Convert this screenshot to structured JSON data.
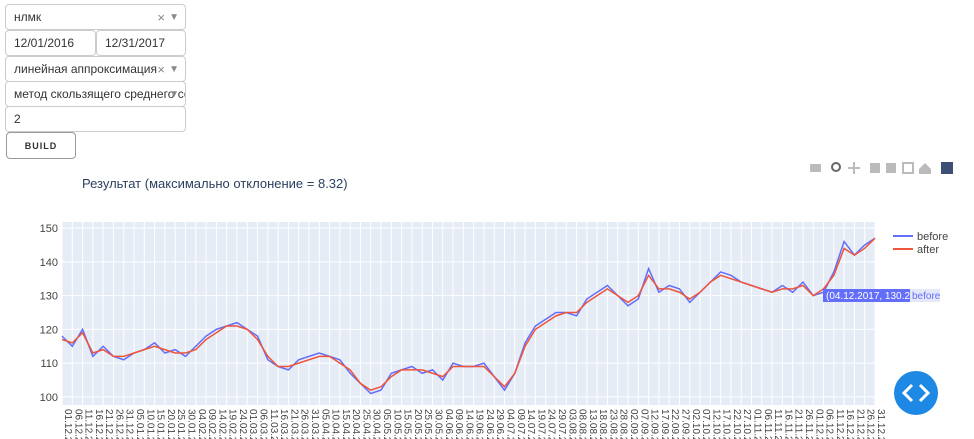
{
  "controls": {
    "stock": "нлмк",
    "date_start": "12/01/2016",
    "date_end": "12/31/2017",
    "approximation": "линейная аппроксимация",
    "method": "метод скользящего среднего со...",
    "window": "2",
    "build": "BUILD"
  },
  "chart_data": {
    "type": "line",
    "title": "Результат (максимально отклонение = 8.32)",
    "categories": [
      "01.12.2016",
      "06.12.2016",
      "11.12.2016",
      "16.12.2016",
      "21.12.2016",
      "26.12.2016",
      "31.12.2016",
      "05.01.2017",
      "10.01.2017",
      "15.01.2017",
      "20.01.2017",
      "25.01.2017",
      "30.01.2017",
      "04.02.2017",
      "09.02.2017",
      "14.02.2017",
      "19.02.2017",
      "24.02.2017",
      "01.03.2017",
      "06.03.2017",
      "11.03.2017",
      "16.03.2017",
      "21.03.2017",
      "26.03.2017",
      "31.03.2017",
      "05.04.2017",
      "10.04.2017",
      "15.04.2017",
      "20.04.2017",
      "25.04.2017",
      "30.04.2017",
      "05.05.2017",
      "10.05.2017",
      "15.05.2017",
      "20.05.2017",
      "25.05.2017",
      "30.05.2017",
      "04.06.2017",
      "09.06.2017",
      "14.06.2017",
      "19.06.2017",
      "24.06.2017",
      "29.06.2017",
      "04.07.2017",
      "09.07.2017",
      "14.07.2017",
      "19.07.2017",
      "24.07.2017",
      "29.07.2017",
      "03.08.2017",
      "08.08.2017",
      "13.08.2017",
      "18.08.2017",
      "23.08.2017",
      "28.08.2017",
      "02.09.2017",
      "07.09.2017",
      "12.09.2017",
      "17.09.2017",
      "22.09.2017",
      "27.09.2017",
      "02.10.2017",
      "07.10.2017",
      "12.10.2017",
      "17.10.2017",
      "22.10.2017",
      "27.10.2017",
      "01.11.2017",
      "06.11.2017",
      "11.11.2017",
      "16.11.2017",
      "21.11.2017",
      "26.11.2017",
      "01.12.2017",
      "06.12.2017",
      "11.12.2017",
      "16.12.2017",
      "21.12.2017",
      "26.12.2017",
      "31.12.2017"
    ],
    "series": [
      {
        "name": "before",
        "color": "#636efa",
        "values": [
          118,
          115,
          120,
          112,
          115,
          112,
          111,
          113,
          114,
          116,
          113,
          114,
          112,
          115,
          118,
          120,
          121,
          122,
          120,
          118,
          111,
          109,
          108,
          111,
          112,
          113,
          112,
          111,
          107,
          104,
          101,
          102,
          107,
          108,
          109,
          107,
          108,
          105,
          110,
          109,
          109,
          110,
          106,
          102,
          107,
          116,
          121,
          123,
          125,
          125,
          124,
          129,
          131,
          133,
          130,
          127,
          129,
          138,
          131,
          133,
          132,
          128,
          131,
          134,
          137,
          136,
          134,
          133,
          132,
          131,
          133,
          131,
          134,
          130,
          131,
          137,
          146,
          142,
          145,
          147
        ]
      },
      {
        "name": "after",
        "color": "#ef553b",
        "values": [
          117,
          116,
          119,
          113,
          114,
          112,
          112,
          113,
          114,
          115,
          114,
          113,
          113,
          114,
          117,
          119,
          121,
          121,
          120,
          117,
          112,
          109,
          109,
          110,
          111,
          112,
          112,
          110,
          108,
          104,
          102,
          103,
          106,
          108,
          108,
          108,
          107,
          106,
          109,
          109,
          109,
          109,
          106,
          103,
          107,
          115,
          120,
          122,
          124,
          125,
          125,
          128,
          130,
          132,
          130,
          128,
          130,
          136,
          132,
          132,
          131,
          129,
          131,
          134,
          136,
          135,
          134,
          133,
          132,
          131,
          132,
          132,
          133,
          130,
          132,
          136,
          144,
          142,
          144,
          147
        ]
      }
    ],
    "ylim": [
      97.6,
      151.8
    ],
    "yticks": [
      100,
      110,
      120,
      130,
      140,
      150
    ],
    "grid": true,
    "legend": "right",
    "hover_label": {
      "text": "(04.12.2017, 130.22)",
      "series": "before"
    }
  }
}
